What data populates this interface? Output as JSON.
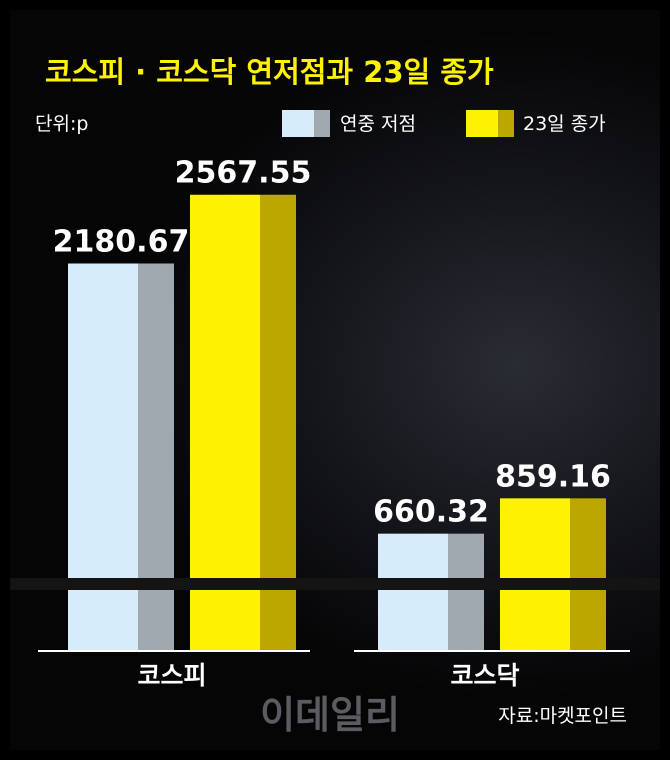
{
  "chart_data": {
    "type": "bar",
    "title": "코스피 · 코스닥 연저점과 23일 종가",
    "unit_label": "단위:p",
    "categories": [
      "코스피",
      "코스닥"
    ],
    "series": [
      {
        "name": "연중 저점",
        "values": [
          2180.67,
          660.32
        ],
        "labels": [
          "2180.67",
          "660.32"
        ]
      },
      {
        "name": "23일 종가",
        "values": [
          2567.55,
          859.16
        ],
        "labels": [
          "2567.55",
          "859.16"
        ]
      }
    ],
    "legend_position": "top-right",
    "grid": false,
    "axis_break": true,
    "source": "자료:마켓포인트",
    "watermark": "이데일리"
  },
  "colors": {
    "series1_front": "#d6ecfa",
    "series1_side": "#9fa9af",
    "series2_front": "#fff200",
    "series2_side": "#bba700",
    "title": "#fff200",
    "text": "#ffffff"
  }
}
